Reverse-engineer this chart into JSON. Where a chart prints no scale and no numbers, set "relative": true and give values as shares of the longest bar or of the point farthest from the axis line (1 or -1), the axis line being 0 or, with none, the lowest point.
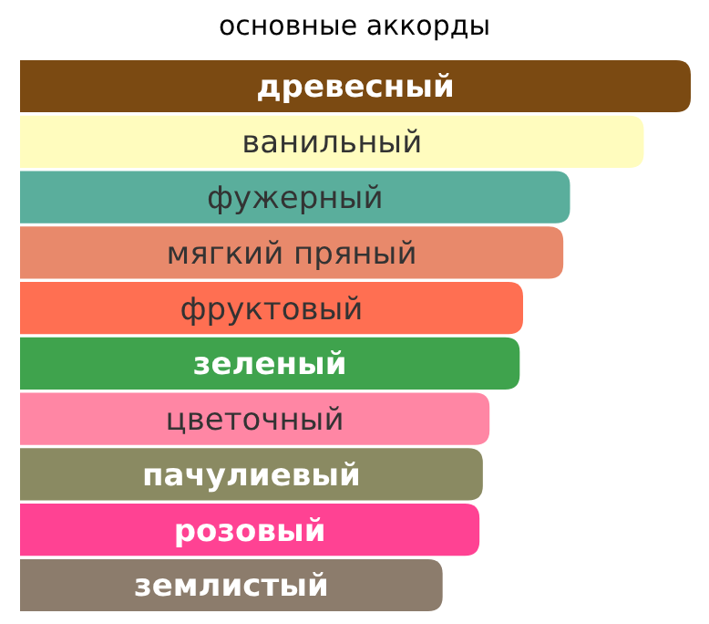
{
  "chart_data": {
    "type": "bar",
    "orientation": "horizontal",
    "relative": true,
    "title": "основные аккорды",
    "categories": [
      "древесный",
      "ванильный",
      "фужерный",
      "мягкий пряный",
      "фруктовый",
      "зеленый",
      "цветочный",
      "пачулиевый",
      "розовый",
      "землистый"
    ],
    "values": [
      1,
      0.93,
      0.82,
      0.81,
      0.75,
      0.745,
      0.7,
      0.69,
      0.685,
      0.63
    ],
    "colors": [
      "#7b4a12",
      "#fffcbe",
      "#5aae9c",
      "#e8896b",
      "#ff6f52",
      "#3fa34d",
      "#ff86a4",
      "#8a8a62",
      "#ff4293",
      "#8c7c6c"
    ]
  }
}
